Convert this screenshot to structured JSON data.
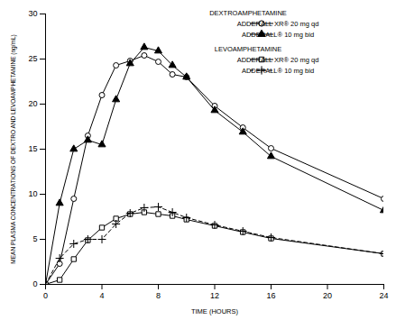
{
  "chart_data": {
    "type": "line",
    "x_label": "TIME (HOURS)",
    "y_label": "MEAN PLASMA CONCENTRATIONS OF DEXTRO AND LEVOAMPHETAMINE (ng/mL)",
    "x": [
      0,
      1,
      2,
      3,
      4,
      5,
      6,
      7,
      8,
      9,
      10,
      12,
      14,
      16,
      24
    ],
    "series": [
      {
        "name": "ADDERALL XR® 20 mg qd",
        "group": "DEXTROAMPHETAMINE",
        "color": "#000000",
        "marker": "circle-open",
        "line_style": "solid",
        "values": [
          0,
          2.3,
          9.5,
          16.5,
          21,
          24.3,
          24.8,
          25.4,
          24.7,
          23.3,
          23,
          19.8,
          17.4,
          15.1,
          9.5
        ]
      },
      {
        "name": "ADDERALL® 10 mg bid",
        "group": "DEXTROAMPHETAMINE",
        "color": "#000000",
        "marker": "triangle",
        "line_style": "solid",
        "values": [
          0,
          9,
          15,
          16,
          15.5,
          20.5,
          24.5,
          26.3,
          25.9,
          24.3,
          23,
          19.3,
          16.9,
          14.2,
          8.2
        ]
      },
      {
        "name": "ADDERALL XR® 20 mg qd",
        "group": "LEVOAMPHETAMINE",
        "color": "#000000",
        "marker": "square-open",
        "line_style": "solid",
        "values": [
          0,
          0.5,
          2.8,
          4.9,
          6.3,
          7.3,
          7.8,
          8,
          7.8,
          7.6,
          7.2,
          6.5,
          5.8,
          5.1,
          3.4
        ]
      },
      {
        "name": "ADDERALL® 10 mg bid",
        "group": "LEVOAMPHETAMINE",
        "color": "#000000",
        "marker": "plus",
        "line_style": "dashed",
        "values": [
          0,
          2.9,
          4.5,
          5,
          5,
          6.7,
          7.9,
          8.5,
          8.6,
          8,
          7.4,
          6.6,
          5.9,
          5.2,
          3.4
        ]
      }
    ],
    "xlim": [
      0,
      24
    ],
    "xticks": [
      0,
      4,
      8,
      12,
      16,
      20,
      24
    ],
    "ylim": [
      0,
      30
    ],
    "yticks": [
      0,
      5,
      10,
      15,
      20,
      25,
      30
    ],
    "grid": false,
    "legend": "top-right"
  }
}
